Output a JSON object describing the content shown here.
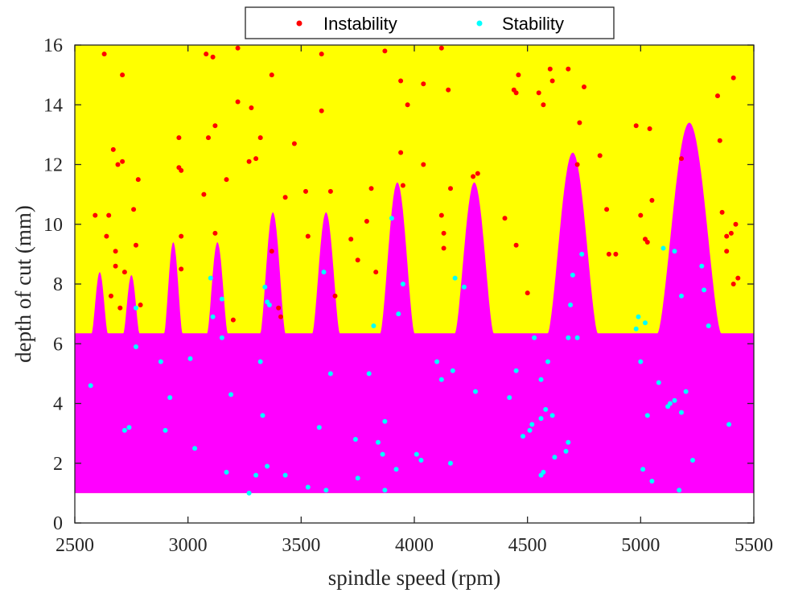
{
  "chart_data": {
    "type": "scatter",
    "title": "",
    "xlabel": "spindle speed (rpm)",
    "ylabel": "depth of cut (mm)",
    "xlim": [
      2500,
      5500
    ],
    "ylim": [
      0,
      16
    ],
    "xticks": [
      "2500",
      "3000",
      "3500",
      "4000",
      "4500",
      "5000",
      "5500"
    ],
    "yticks": [
      "0",
      "2",
      "4",
      "6",
      "8",
      "10",
      "12",
      "14",
      "16"
    ],
    "legend_position": "top-center",
    "colors": {
      "unstable_region": "#ffff00",
      "stable_region": "#ff00ff",
      "instability": "#ff0000",
      "stability": "#00ffff"
    },
    "regions": {
      "unstable_name": "",
      "stable_name": "",
      "stable_lower_depth": 1.0,
      "baseline_depth": 6.35,
      "lobes": [
        {
          "center": 2610,
          "peak": 8.4,
          "halfwidth": 35
        },
        {
          "center": 2750,
          "peak": 8.3,
          "halfwidth": 35
        },
        {
          "center": 2935,
          "peak": 9.4,
          "halfwidth": 40
        },
        {
          "center": 3130,
          "peak": 9.4,
          "halfwidth": 45
        },
        {
          "center": 3375,
          "peak": 10.4,
          "halfwidth": 55
        },
        {
          "center": 3610,
          "peak": 10.4,
          "halfwidth": 60
        },
        {
          "center": 3925,
          "peak": 11.4,
          "halfwidth": 75
        },
        {
          "center": 4265,
          "peak": 11.4,
          "halfwidth": 85
        },
        {
          "center": 4700,
          "peak": 12.4,
          "halfwidth": 110
        },
        {
          "center": 5215,
          "peak": 13.4,
          "halfwidth": 140
        }
      ]
    },
    "series": [
      {
        "name": "Instability",
        "points": [
          [
            2590,
            10.3
          ],
          [
            2630,
            15.7
          ],
          [
            2640,
            9.6
          ],
          [
            2650,
            10.3
          ],
          [
            2660,
            7.6
          ],
          [
            2670,
            12.5
          ],
          [
            2680,
            9.1
          ],
          [
            2680,
            8.6
          ],
          [
            2690,
            12.0
          ],
          [
            2700,
            7.2
          ],
          [
            2710,
            15.0
          ],
          [
            2710,
            12.1
          ],
          [
            2720,
            8.4
          ],
          [
            2760,
            10.5
          ],
          [
            2770,
            9.3
          ],
          [
            2780,
            11.5
          ],
          [
            2790,
            7.3
          ],
          [
            2960,
            12.9
          ],
          [
            2960,
            11.9
          ],
          [
            2970,
            11.8
          ],
          [
            2970,
            9.6
          ],
          [
            2970,
            8.5
          ],
          [
            3070,
            11.0
          ],
          [
            3080,
            15.7
          ],
          [
            3090,
            12.9
          ],
          [
            3110,
            15.6
          ],
          [
            3120,
            13.3
          ],
          [
            3120,
            9.7
          ],
          [
            3170,
            11.5
          ],
          [
            3200,
            6.8
          ],
          [
            3220,
            15.9
          ],
          [
            3220,
            14.1
          ],
          [
            3270,
            12.1
          ],
          [
            3280,
            13.9
          ],
          [
            3300,
            12.2
          ],
          [
            3320,
            12.9
          ],
          [
            3370,
            15.0
          ],
          [
            3370,
            9.1
          ],
          [
            3400,
            7.2
          ],
          [
            3410,
            6.9
          ],
          [
            3430,
            10.9
          ],
          [
            3470,
            12.7
          ],
          [
            3520,
            11.1
          ],
          [
            3530,
            9.6
          ],
          [
            3590,
            15.7
          ],
          [
            3590,
            13.8
          ],
          [
            3630,
            11.1
          ],
          [
            3650,
            7.6
          ],
          [
            3720,
            9.5
          ],
          [
            3750,
            8.8
          ],
          [
            3790,
            10.1
          ],
          [
            3810,
            11.2
          ],
          [
            3830,
            8.4
          ],
          [
            3870,
            15.8
          ],
          [
            3940,
            14.8
          ],
          [
            3940,
            12.4
          ],
          [
            3950,
            11.3
          ],
          [
            3970,
            14.0
          ],
          [
            4040,
            14.7
          ],
          [
            4040,
            12.0
          ],
          [
            4120,
            15.9
          ],
          [
            4120,
            10.3
          ],
          [
            4130,
            9.7
          ],
          [
            4130,
            9.2
          ],
          [
            4150,
            14.5
          ],
          [
            4160,
            11.2
          ],
          [
            4260,
            11.6
          ],
          [
            4280,
            11.7
          ],
          [
            4400,
            10.2
          ],
          [
            4440,
            14.5
          ],
          [
            4450,
            14.4
          ],
          [
            4450,
            9.3
          ],
          [
            4460,
            15.0
          ],
          [
            4500,
            7.7
          ],
          [
            4550,
            14.4
          ],
          [
            4570,
            14.0
          ],
          [
            4600,
            15.2
          ],
          [
            4610,
            14.8
          ],
          [
            4680,
            15.2
          ],
          [
            4720,
            12.0
          ],
          [
            4730,
            13.4
          ],
          [
            4750,
            14.6
          ],
          [
            4820,
            12.3
          ],
          [
            4850,
            10.5
          ],
          [
            4860,
            9.0
          ],
          [
            4890,
            9.0
          ],
          [
            4980,
            13.3
          ],
          [
            5000,
            10.3
          ],
          [
            5020,
            9.5
          ],
          [
            5030,
            9.4
          ],
          [
            5040,
            13.2
          ],
          [
            5050,
            10.8
          ],
          [
            5180,
            12.2
          ],
          [
            5340,
            14.3
          ],
          [
            5350,
            12.8
          ],
          [
            5360,
            10.4
          ],
          [
            5380,
            9.6
          ],
          [
            5380,
            9.1
          ],
          [
            5400,
            9.7
          ],
          [
            5410,
            14.9
          ],
          [
            5410,
            8.0
          ],
          [
            5420,
            10.0
          ],
          [
            5430,
            8.2
          ]
        ]
      },
      {
        "name": "Stability",
        "points": [
          [
            2570,
            4.6
          ],
          [
            2720,
            3.1
          ],
          [
            2740,
            3.2
          ],
          [
            2770,
            7.2
          ],
          [
            2770,
            5.9
          ],
          [
            2880,
            5.4
          ],
          [
            2900,
            3.1
          ],
          [
            2920,
            4.2
          ],
          [
            3010,
            5.5
          ],
          [
            3030,
            2.5
          ],
          [
            3100,
            8.2
          ],
          [
            3110,
            6.9
          ],
          [
            3150,
            7.5
          ],
          [
            3150,
            6.2
          ],
          [
            3170,
            1.7
          ],
          [
            3190,
            4.3
          ],
          [
            3270,
            1.0
          ],
          [
            3300,
            1.6
          ],
          [
            3320,
            5.4
          ],
          [
            3330,
            3.6
          ],
          [
            3340,
            7.9
          ],
          [
            3350,
            7.4
          ],
          [
            3350,
            1.9
          ],
          [
            3360,
            7.3
          ],
          [
            3430,
            1.6
          ],
          [
            3530,
            1.2
          ],
          [
            3580,
            3.2
          ],
          [
            3600,
            8.4
          ],
          [
            3610,
            1.1
          ],
          [
            3630,
            5.0
          ],
          [
            3740,
            2.8
          ],
          [
            3750,
            1.5
          ],
          [
            3800,
            5.0
          ],
          [
            3820,
            6.6
          ],
          [
            3840,
            2.7
          ],
          [
            3860,
            2.3
          ],
          [
            3870,
            3.4
          ],
          [
            3870,
            1.1
          ],
          [
            3900,
            10.2
          ],
          [
            3920,
            1.8
          ],
          [
            3930,
            7.0
          ],
          [
            3950,
            8.0
          ],
          [
            4010,
            2.3
          ],
          [
            4030,
            2.1
          ],
          [
            4100,
            5.4
          ],
          [
            4120,
            4.8
          ],
          [
            4160,
            2.0
          ],
          [
            4170,
            5.1
          ],
          [
            4180,
            8.2
          ],
          [
            4220,
            7.9
          ],
          [
            4270,
            4.4
          ],
          [
            4420,
            4.2
          ],
          [
            4450,
            5.1
          ],
          [
            4480,
            2.9
          ],
          [
            4510,
            3.1
          ],
          [
            4520,
            3.3
          ],
          [
            4530,
            6.2
          ],
          [
            4560,
            3.5
          ],
          [
            4560,
            1.6
          ],
          [
            4560,
            4.8
          ],
          [
            4570,
            1.7
          ],
          [
            4580,
            3.8
          ],
          [
            4590,
            5.4
          ],
          [
            4610,
            3.6
          ],
          [
            4620,
            2.2
          ],
          [
            4670,
            2.4
          ],
          [
            4680,
            2.7
          ],
          [
            4680,
            6.2
          ],
          [
            4690,
            7.3
          ],
          [
            4700,
            8.3
          ],
          [
            4720,
            6.2
          ],
          [
            4740,
            9.0
          ],
          [
            4980,
            6.5
          ],
          [
            4990,
            6.9
          ],
          [
            5000,
            5.4
          ],
          [
            5010,
            1.8
          ],
          [
            5020,
            6.7
          ],
          [
            5030,
            3.6
          ],
          [
            5050,
            1.4
          ],
          [
            5080,
            4.7
          ],
          [
            5100,
            9.2
          ],
          [
            5120,
            3.9
          ],
          [
            5130,
            4.0
          ],
          [
            5150,
            9.1
          ],
          [
            5150,
            4.1
          ],
          [
            5170,
            1.1
          ],
          [
            5180,
            3.7
          ],
          [
            5180,
            7.6
          ],
          [
            5200,
            4.4
          ],
          [
            5230,
            2.1
          ],
          [
            5270,
            8.6
          ],
          [
            5280,
            7.8
          ],
          [
            5300,
            6.6
          ],
          [
            5390,
            3.3
          ]
        ]
      }
    ]
  }
}
